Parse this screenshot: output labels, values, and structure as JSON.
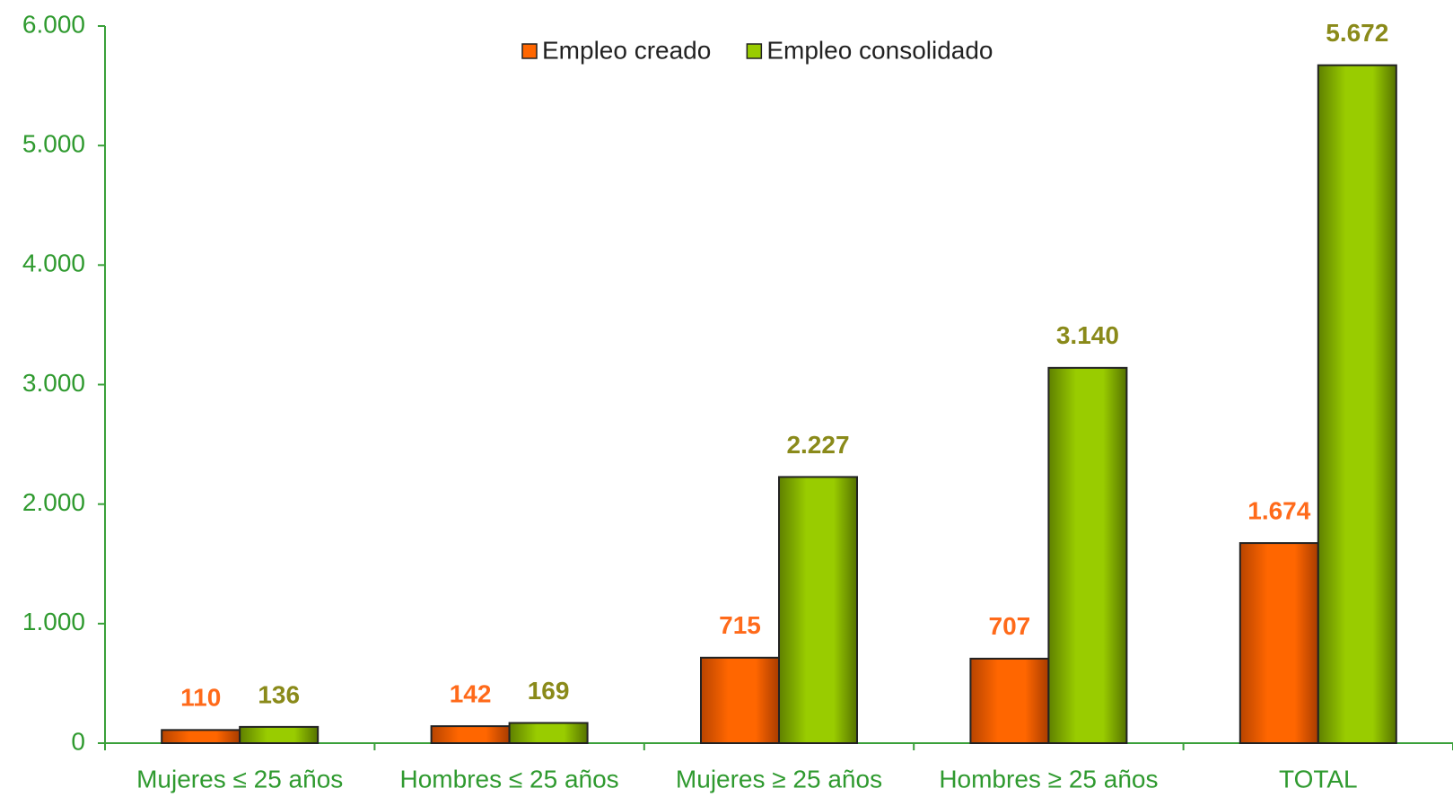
{
  "chart_data": {
    "type": "bar",
    "categories": [
      "Mujeres ≤  25 años",
      "Hombres ≤  25 años",
      "Mujeres ≥  25 años",
      "Hombres ≥  25 años",
      "TOTAL"
    ],
    "series": [
      {
        "name": "Empleo creado",
        "color": "#ff6600",
        "label_color": "#ff6a1a",
        "values": [
          110,
          142,
          715,
          707,
          1674
        ],
        "value_labels": [
          "110",
          "142",
          "715",
          "707",
          "1.674"
        ]
      },
      {
        "name": "Empleo consolidado",
        "color": "#99cc00",
        "label_color": "#8a8a1a",
        "values": [
          136,
          169,
          2227,
          3140,
          5672
        ],
        "value_labels": [
          "136",
          "169",
          "2.227",
          "3.140",
          "5.672"
        ]
      }
    ],
    "ylim": [
      0,
      6000
    ],
    "yticks": [
      0,
      {
        "value": 1000,
        "label": "1.000"
      },
      {
        "value": 2000,
        "label": "2.000"
      },
      {
        "value": 3000,
        "label": "3.000"
      },
      {
        "value": 4000,
        "label": "4.000"
      },
      {
        "value": 5000,
        "label": "5.000"
      },
      {
        "value": 6000,
        "label": "6.000"
      }
    ],
    "grid": false,
    "legend": "top"
  }
}
